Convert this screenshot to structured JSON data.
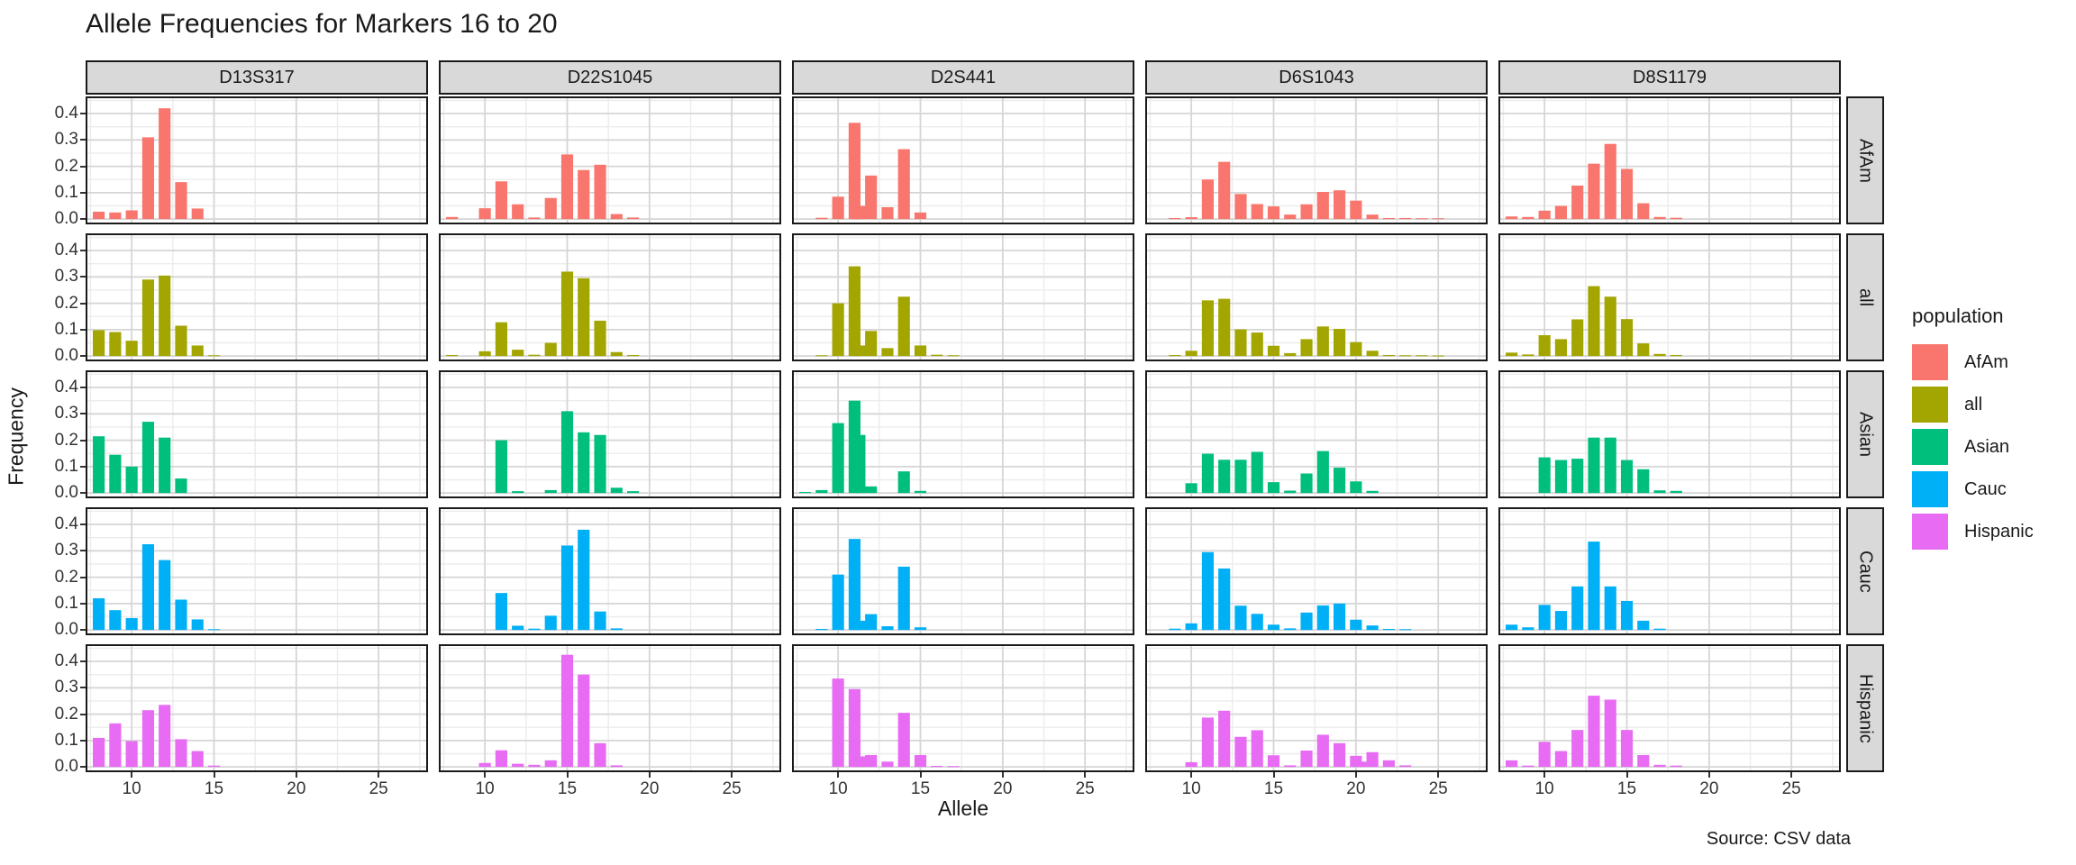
{
  "title": "Allele Frequencies for Markers 16 to 20",
  "caption": "Source: CSV data",
  "axis": {
    "x_label": "Allele",
    "y_label": "Frequency",
    "x_tick_labels": [
      "10",
      "15",
      "20",
      "25"
    ],
    "y_tick_labels": [
      "0.0",
      "0.1",
      "0.2",
      "0.3",
      "0.4"
    ]
  },
  "legend": {
    "title": "population",
    "entries": [
      {
        "label": "AfAm",
        "color": "#F8766D"
      },
      {
        "label": "all",
        "color": "#A3A500"
      },
      {
        "label": "Asian",
        "color": "#00BF7D"
      },
      {
        "label": "Cauc",
        "color": "#00B0F6"
      },
      {
        "label": "Hispanic",
        "color": "#E76BF3"
      }
    ]
  },
  "colors": {
    "strip_bg": "#D9D9D9",
    "panel_border": "#1A1A1A",
    "grid_major": "#D6D6D6",
    "grid_minor": "#ECECEC",
    "axis_text": "#333333"
  },
  "chart_data": {
    "type": "bar",
    "title": "Allele Frequencies for Markers 16 to 20",
    "xlabel": "Allele",
    "ylabel": "Frequency",
    "x_ticks": [
      10,
      15,
      20,
      25
    ],
    "y_ticks": [
      0.0,
      0.1,
      0.2,
      0.3,
      0.4
    ],
    "x_minor_ticks": [
      7.5,
      12.5,
      17.5,
      22.5,
      27.5
    ],
    "y_minor_ticks": [
      0.05,
      0.15,
      0.25,
      0.35,
      0.45
    ],
    "xlim": [
      7.2,
      28.0
    ],
    "ylim": [
      0,
      0.445
    ],
    "grid": true,
    "legend_position": "right",
    "facet_columns": [
      "D13S317",
      "D22S1045",
      "D2S441",
      "D6S1043",
      "D8S1179"
    ],
    "facet_rows": [
      "AfAm",
      "all",
      "Asian",
      "Cauc",
      "Hispanic"
    ],
    "series_colors": {
      "AfAm": "#F8766D",
      "all": "#A3A500",
      "Asian": "#00BF7D",
      "Cauc": "#00B0F6",
      "Hispanic": "#E76BF3"
    },
    "panels": [
      {
        "marker": "D13S317",
        "population": "AfAm",
        "alleles": [
          8,
          9,
          10,
          11,
          12,
          13,
          14
        ],
        "frequencies": [
          0.028,
          0.025,
          0.033,
          0.31,
          0.42,
          0.14,
          0.04
        ]
      },
      {
        "marker": "D13S317",
        "population": "all",
        "alleles": [
          8,
          9,
          10,
          11,
          12,
          13,
          14,
          15
        ],
        "frequencies": [
          0.098,
          0.091,
          0.058,
          0.29,
          0.305,
          0.115,
          0.04,
          0.003
        ]
      },
      {
        "marker": "D13S317",
        "population": "Asian",
        "alleles": [
          8,
          9,
          10,
          11,
          12,
          13
        ],
        "frequencies": [
          0.215,
          0.145,
          0.1,
          0.27,
          0.21,
          0.055
        ]
      },
      {
        "marker": "D13S317",
        "population": "Cauc",
        "alleles": [
          8,
          9,
          10,
          11,
          12,
          13,
          14,
          15
        ],
        "frequencies": [
          0.12,
          0.075,
          0.045,
          0.325,
          0.265,
          0.115,
          0.04,
          0.003
        ]
      },
      {
        "marker": "D13S317",
        "population": "Hispanic",
        "alleles": [
          8,
          9,
          10,
          11,
          12,
          13,
          14,
          15
        ],
        "frequencies": [
          0.11,
          0.165,
          0.098,
          0.215,
          0.235,
          0.105,
          0.06,
          0.005
        ]
      },
      {
        "marker": "D22S1045",
        "population": "AfAm",
        "alleles": [
          8,
          10,
          11,
          12,
          13,
          14,
          15,
          16,
          17,
          18,
          19
        ],
        "frequencies": [
          0.008,
          0.041,
          0.143,
          0.056,
          0.006,
          0.08,
          0.245,
          0.186,
          0.206,
          0.019,
          0.006
        ]
      },
      {
        "marker": "D22S1045",
        "population": "all",
        "alleles": [
          8,
          10,
          11,
          12,
          13,
          14,
          15,
          16,
          17,
          18,
          19
        ],
        "frequencies": [
          0.004,
          0.018,
          0.128,
          0.024,
          0.005,
          0.05,
          0.32,
          0.295,
          0.134,
          0.015,
          0.004
        ]
      },
      {
        "marker": "D22S1045",
        "population": "Asian",
        "alleles": [
          11,
          12,
          14,
          15,
          16,
          17,
          18,
          19
        ],
        "frequencies": [
          0.2,
          0.007,
          0.011,
          0.31,
          0.23,
          0.22,
          0.02,
          0.007
        ]
      },
      {
        "marker": "D22S1045",
        "population": "Cauc",
        "alleles": [
          11,
          12,
          13,
          14,
          15,
          16,
          17,
          18
        ],
        "frequencies": [
          0.14,
          0.016,
          0.005,
          0.054,
          0.32,
          0.38,
          0.07,
          0.006
        ]
      },
      {
        "marker": "D22S1045",
        "population": "Hispanic",
        "alleles": [
          10,
          11,
          12,
          13,
          14,
          15,
          16,
          17,
          18
        ],
        "frequencies": [
          0.015,
          0.063,
          0.012,
          0.008,
          0.025,
          0.425,
          0.35,
          0.09,
          0.006
        ]
      },
      {
        "marker": "D2S441",
        "population": "AfAm",
        "alleles": [
          9,
          10,
          11,
          11.3,
          12,
          13,
          14,
          15
        ],
        "frequencies": [
          0.005,
          0.085,
          0.365,
          0.05,
          0.165,
          0.045,
          0.265,
          0.025
        ]
      },
      {
        "marker": "D2S441",
        "population": "all",
        "alleles": [
          9,
          10,
          11,
          11.3,
          12,
          13,
          14,
          15,
          16,
          17
        ],
        "frequencies": [
          0.003,
          0.2,
          0.34,
          0.04,
          0.095,
          0.03,
          0.225,
          0.04,
          0.005,
          0.003
        ]
      },
      {
        "marker": "D2S441",
        "population": "Asian",
        "alleles": [
          8,
          9,
          10,
          11,
          11.3,
          12,
          14,
          15
        ],
        "frequencies": [
          0.004,
          0.011,
          0.265,
          0.35,
          0.22,
          0.025,
          0.082,
          0.008
        ]
      },
      {
        "marker": "D2S441",
        "population": "Cauc",
        "alleles": [
          9,
          10,
          11,
          11.3,
          12,
          13,
          14,
          15
        ],
        "frequencies": [
          0.004,
          0.21,
          0.345,
          0.035,
          0.06,
          0.014,
          0.24,
          0.01
        ]
      },
      {
        "marker": "D2S441",
        "population": "Hispanic",
        "alleles": [
          10,
          11,
          11.3,
          12,
          13,
          14,
          15,
          16,
          17
        ],
        "frequencies": [
          0.335,
          0.295,
          0.04,
          0.045,
          0.02,
          0.205,
          0.045,
          0.004,
          0.003
        ]
      },
      {
        "marker": "D6S1043",
        "population": "AfAm",
        "alleles": [
          9,
          10,
          11,
          12,
          13,
          14,
          15,
          16,
          17,
          18,
          19,
          20,
          21,
          22,
          23,
          24,
          25
        ],
        "frequencies": [
          0.004,
          0.007,
          0.15,
          0.217,
          0.095,
          0.057,
          0.048,
          0.017,
          0.056,
          0.103,
          0.109,
          0.07,
          0.017,
          0.004,
          0.004,
          0.003,
          0.003
        ]
      },
      {
        "marker": "D6S1043",
        "population": "all",
        "alleles": [
          9,
          10,
          11,
          12,
          13,
          14,
          15,
          16,
          17,
          18,
          19,
          20,
          21,
          22,
          23,
          24,
          25
        ],
        "frequencies": [
          0.004,
          0.02,
          0.211,
          0.217,
          0.101,
          0.089,
          0.039,
          0.011,
          0.064,
          0.112,
          0.103,
          0.053,
          0.02,
          0.004,
          0.003,
          0.003,
          0.002
        ]
      },
      {
        "marker": "D6S1043",
        "population": "Asian",
        "alleles": [
          10,
          11,
          12,
          13,
          14,
          15,
          16,
          17,
          18,
          19,
          20,
          21
        ],
        "frequencies": [
          0.037,
          0.149,
          0.126,
          0.126,
          0.156,
          0.041,
          0.009,
          0.074,
          0.159,
          0.096,
          0.044,
          0.008
        ]
      },
      {
        "marker": "D6S1043",
        "population": "Cauc",
        "alleles": [
          9,
          10,
          11,
          12,
          13,
          14,
          15,
          16,
          17,
          18,
          19,
          20,
          21,
          22,
          23
        ],
        "frequencies": [
          0.005,
          0.025,
          0.295,
          0.233,
          0.092,
          0.061,
          0.02,
          0.006,
          0.066,
          0.093,
          0.1,
          0.039,
          0.017,
          0.004,
          0.003
        ]
      },
      {
        "marker": "D6S1043",
        "population": "Hispanic",
        "alleles": [
          10,
          11,
          12,
          13,
          14,
          15,
          16,
          17,
          18,
          19,
          20,
          20.3,
          21,
          22,
          23
        ],
        "frequencies": [
          0.018,
          0.187,
          0.213,
          0.114,
          0.139,
          0.044,
          0.006,
          0.062,
          0.122,
          0.09,
          0.042,
          0.02,
          0.056,
          0.025,
          0.006
        ]
      },
      {
        "marker": "D8S1179",
        "population": "AfAm",
        "alleles": [
          8,
          9,
          10,
          11,
          12,
          13,
          14,
          15,
          16,
          17,
          18
        ],
        "frequencies": [
          0.01,
          0.008,
          0.032,
          0.05,
          0.127,
          0.21,
          0.285,
          0.19,
          0.06,
          0.008,
          0.005
        ]
      },
      {
        "marker": "D8S1179",
        "population": "all",
        "alleles": [
          8,
          9,
          10,
          11,
          12,
          13,
          14,
          15,
          16,
          17,
          18
        ],
        "frequencies": [
          0.013,
          0.006,
          0.079,
          0.064,
          0.139,
          0.265,
          0.225,
          0.14,
          0.048,
          0.008,
          0.004
        ]
      },
      {
        "marker": "D8S1179",
        "population": "Asian",
        "alleles": [
          10,
          11,
          12,
          13,
          14,
          15,
          16,
          17,
          18
        ],
        "frequencies": [
          0.135,
          0.125,
          0.13,
          0.21,
          0.21,
          0.125,
          0.09,
          0.01,
          0.008
        ]
      },
      {
        "marker": "D8S1179",
        "population": "Cauc",
        "alleles": [
          8,
          9,
          10,
          11,
          12,
          13,
          14,
          15,
          16,
          17
        ],
        "frequencies": [
          0.02,
          0.01,
          0.095,
          0.072,
          0.165,
          0.335,
          0.165,
          0.11,
          0.035,
          0.005
        ]
      },
      {
        "marker": "D8S1179",
        "population": "Hispanic",
        "alleles": [
          8,
          9,
          10,
          11,
          12,
          13,
          14,
          15,
          16,
          17,
          18
        ],
        "frequencies": [
          0.025,
          0.005,
          0.095,
          0.06,
          0.14,
          0.27,
          0.255,
          0.14,
          0.045,
          0.008,
          0.005
        ]
      }
    ]
  }
}
